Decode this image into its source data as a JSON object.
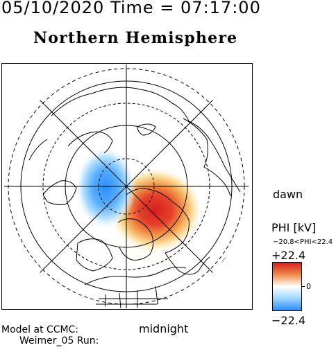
{
  "header": {
    "datetime": "05/10/2020 Time = 07:17:00",
    "hemisphere": "Northern Hemisphere"
  },
  "map": {
    "dawn_label": "dawn",
    "midnight_label": "midnight",
    "field_colors": {
      "positive": "#d42020",
      "positive_mid": "#f29a4a",
      "neutral": "#fff7d0",
      "negative_mid": "#9ed6ff",
      "negative": "#2a8cff"
    }
  },
  "colorbar": {
    "title": "PHI [kV]",
    "range_text": "−20.8<PHI<22.4",
    "max_label": "+22.4",
    "zero_label": "0",
    "min_label": "−22.4",
    "max_value": 22.4,
    "min_value": -22.4
  },
  "footer": {
    "model_line": "Model at CCMC:",
    "run_line": "Weimer_05 Run:"
  }
}
